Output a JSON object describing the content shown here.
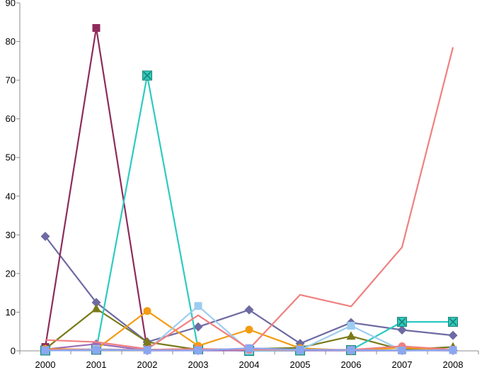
{
  "chart_data": {
    "type": "line",
    "title": "",
    "xlabel": "",
    "ylabel": "",
    "ylim": [
      0,
      90
    ],
    "yticks": [
      0,
      10,
      20,
      30,
      40,
      50,
      60,
      70,
      80,
      90
    ],
    "x": [
      "2000",
      "2001",
      "2002",
      "2003",
      "2004",
      "2005",
      "2006",
      "2007",
      "2008"
    ],
    "grid": false,
    "legend": "none",
    "series": [
      {
        "color": "#6e6aa3",
        "marker": "diamond",
        "values": [
          29.6,
          12.5,
          2.3,
          6.2,
          10.6,
          1.9,
          7.3,
          5.4,
          4.0
        ]
      },
      {
        "color": "#8e2b5c",
        "marker": "square",
        "values": [
          1.0,
          83.5,
          0.3,
          0.5,
          0.2,
          0.3,
          0.1,
          0.1,
          0.2
        ]
      },
      {
        "color": "#7a7a1a",
        "marker": "triangle",
        "values": [
          0.5,
          10.9,
          2.3,
          0.3,
          0.5,
          0.8,
          3.8,
          0.3,
          1.0
        ]
      },
      {
        "color": "#2ecac0",
        "marker": "x-square",
        "values": [
          0.1,
          0.3,
          71.2,
          0.4,
          0.0,
          0.1,
          0.2,
          7.5,
          7.5
        ]
      },
      {
        "color": "#9a6bb8",
        "marker": "diamond",
        "values": [
          0.4,
          1.8,
          0.1,
          0.1,
          0.1,
          0.1,
          0.1,
          0.1,
          0.1
        ]
      },
      {
        "color": "#f39c12",
        "marker": "circle",
        "values": [
          0.5,
          0.4,
          10.3,
          1.3,
          5.5,
          0.7,
          0.1,
          0.8,
          0.3
        ]
      },
      {
        "color": "#9ccdf0",
        "marker": "square",
        "values": [
          0.2,
          0.5,
          0.2,
          11.6,
          0.1,
          0.2,
          6.5,
          0.1,
          0.2
        ]
      },
      {
        "color": "#f08080",
        "marker": "none",
        "values": [
          2.8,
          2.3,
          0.5,
          9.2,
          0.5,
          14.5,
          11.5,
          26.8,
          78.5
        ]
      },
      {
        "color": "#f08080",
        "marker": "circle",
        "values": [
          0.3,
          0.3,
          0.3,
          0.5,
          0.3,
          0.3,
          0.3,
          1.2,
          0.3
        ]
      },
      {
        "color": "#8aa7f0",
        "marker": "square",
        "values": [
          0.1,
          0.2,
          0.2,
          0.1,
          0.7,
          0.3,
          0.2,
          0.1,
          0.2
        ]
      }
    ]
  }
}
